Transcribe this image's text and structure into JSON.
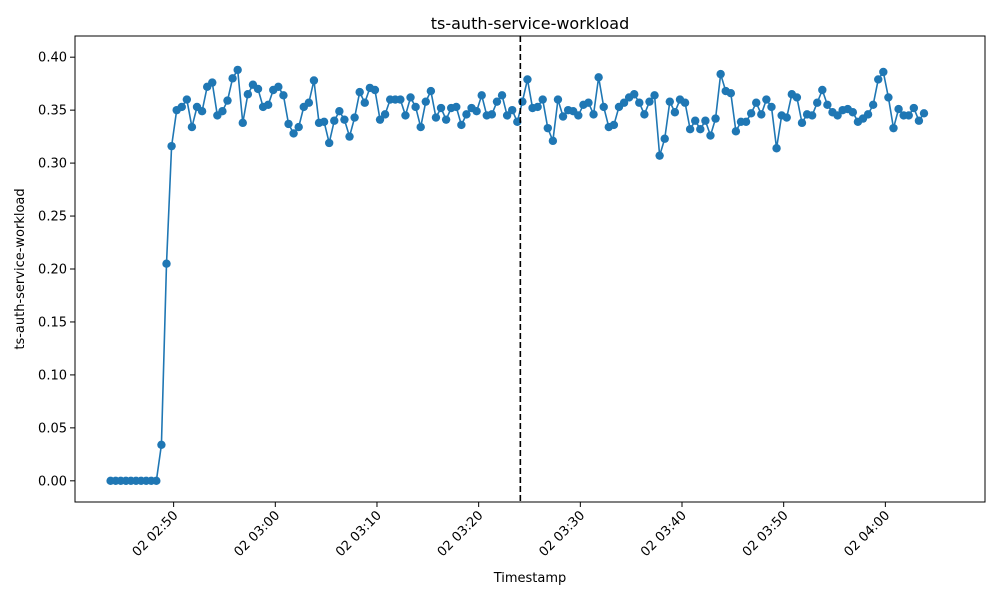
{
  "chart_data": {
    "type": "line",
    "title": "ts-auth-service-workload",
    "xlabel": "Timestamp",
    "ylabel": "ts-auth-service-workload",
    "ylim": [
      -0.02,
      0.42
    ],
    "y_ticks": [
      "0.00",
      "0.05",
      "0.10",
      "0.15",
      "0.20",
      "0.25",
      "0.30",
      "0.35",
      "0.40"
    ],
    "x_ticks": [
      "02 02:50",
      "02 03:00",
      "02 03:10",
      "02 03:20",
      "02 03:30",
      "02 03:40",
      "02 03:50",
      "02 04:00"
    ],
    "x_tick_minutes": [
      170,
      180,
      190,
      200,
      210,
      220,
      230,
      240
    ],
    "xlim_minutes": [
      160.3,
      249.8
    ],
    "vline_minute": 204.1,
    "series_color": "#1f77b4",
    "series": [
      {
        "start_minute": 163.8,
        "step_minutes": 0.5,
        "values": [
          0.0,
          0.0,
          0.0,
          0.0,
          0.0,
          0.0,
          0.0,
          0.0,
          0.0,
          0.0,
          0.034,
          0.205,
          0.316,
          0.35,
          0.353,
          0.36,
          0.334,
          0.353,
          0.349,
          0.372,
          0.376,
          0.345,
          0.349,
          0.359,
          0.38,
          0.388,
          0.338,
          0.365,
          0.374,
          0.37,
          0.353,
          0.355,
          0.369,
          0.372,
          0.364,
          0.337,
          0.328,
          0.334,
          0.353,
          0.357,
          0.378,
          0.338,
          0.339,
          0.319,
          0.34,
          0.349,
          0.341,
          0.325,
          0.343,
          0.367,
          0.357,
          0.371,
          0.369,
          0.341,
          0.346,
          0.36,
          0.36,
          0.36,
          0.345,
          0.362,
          0.353,
          0.334,
          0.358,
          0.368,
          0.343,
          0.352,
          0.341,
          0.352,
          0.353,
          0.336,
          0.346,
          0.352,
          0.349,
          0.364,
          0.345,
          0.346,
          0.358,
          0.364,
          0.345,
          0.35,
          0.339,
          0.358,
          0.379,
          0.352,
          0.353,
          0.36,
          0.333,
          0.321,
          0.36,
          0.344,
          0.35,
          0.349,
          0.345,
          0.355,
          0.357,
          0.346,
          0.381,
          0.353,
          0.334,
          0.336,
          0.353,
          0.357,
          0.362,
          0.365,
          0.357,
          0.346,
          0.358,
          0.364,
          0.307,
          0.323,
          0.358,
          0.348,
          0.36,
          0.357,
          0.332,
          0.34,
          0.332,
          0.34,
          0.326,
          0.342,
          0.384,
          0.368,
          0.366,
          0.33,
          0.339,
          0.339,
          0.347,
          0.357,
          0.346,
          0.36,
          0.353,
          0.314,
          0.345,
          0.343,
          0.365,
          0.362,
          0.338,
          0.346,
          0.345,
          0.357,
          0.369,
          0.355,
          0.348,
          0.345,
          0.35,
          0.351,
          0.348,
          0.339,
          0.342,
          0.346,
          0.355,
          0.379,
          0.386,
          0.362,
          0.333,
          0.351,
          0.345,
          0.345,
          0.352,
          0.34,
          0.347
        ]
      }
    ]
  }
}
